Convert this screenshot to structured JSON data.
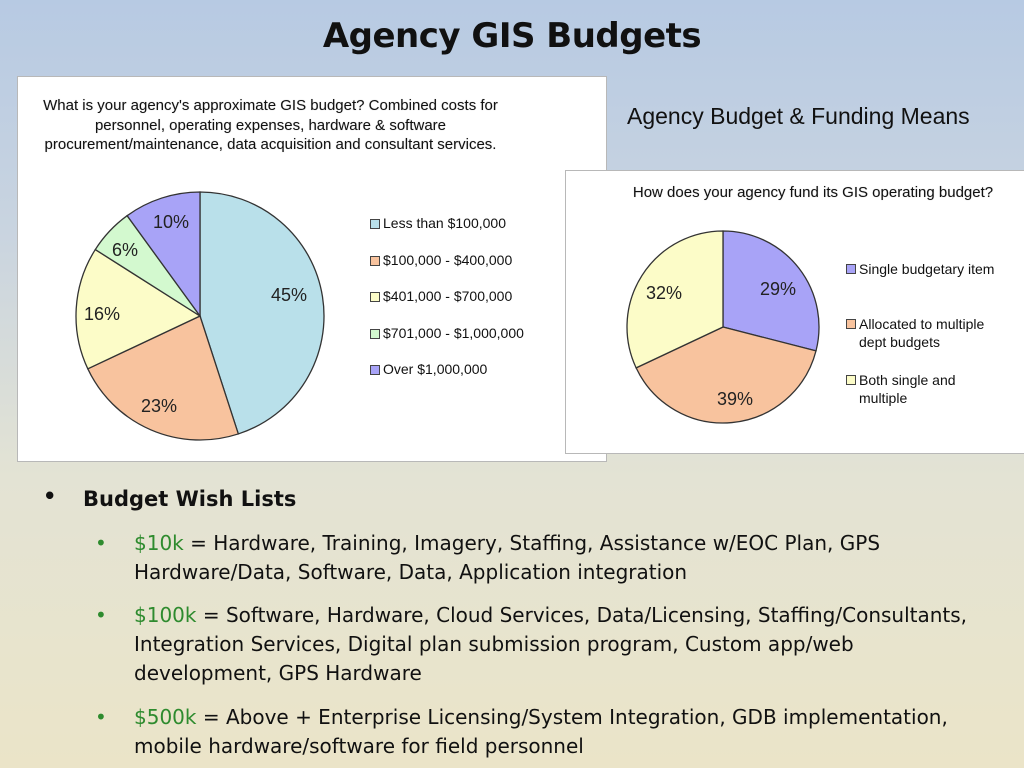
{
  "title": "Agency GIS Budgets",
  "subtitle": "Agency Budget & Funding Means",
  "chart_data": [
    {
      "type": "pie",
      "title": "What is your agency's approximate GIS budget? Combined costs for personnel, operating expenses, hardware & software procurement/maintenance, data acquisition and consultant services.",
      "categories": [
        "Less than $100,000",
        "$100,000 - $400,000",
        "$401,000 - $700,000",
        "$701,000 - $1,000,000",
        "Over $1,000,000"
      ],
      "values": [
        45,
        23,
        16,
        6,
        10
      ],
      "labels": [
        "45%",
        "23%",
        "16%",
        "6%",
        "10%"
      ],
      "colors": [
        "#b9e0ea",
        "#f8c39e",
        "#fcfcc8",
        "#d3f9cf",
        "#a8a3f7"
      ],
      "legend": "right"
    },
    {
      "type": "pie",
      "title": "How does your agency fund its GIS operating budget?",
      "categories": [
        "Single budgetary item",
        "Allocated to multiple dept budgets",
        "Both single and multiple"
      ],
      "values": [
        29,
        39,
        32
      ],
      "labels": [
        "29%",
        "39%",
        "32%"
      ],
      "colors": [
        "#a8a3f7",
        "#f8c39e",
        "#fcfcc8"
      ],
      "legend": "right"
    }
  ],
  "wish": {
    "heading": "Budget Wish Lists",
    "items": [
      {
        "amount": "$10k",
        "text": " = Hardware, Training, Imagery, Staffing, Assistance w/EOC Plan, GPS Hardware/Data, Software, Data, Application integration"
      },
      {
        "amount": "$100k",
        "text": " = Software, Hardware, Cloud Services, Data/Licensing, Staffing/Consultants, Integration Services, Digital plan submission program, Custom app/web development, GPS Hardware"
      },
      {
        "amount": "$500k",
        "text": " = Above + Enterprise Licensing/System Integration, GDB implementation, mobile hardware/software for field personnel"
      }
    ]
  }
}
